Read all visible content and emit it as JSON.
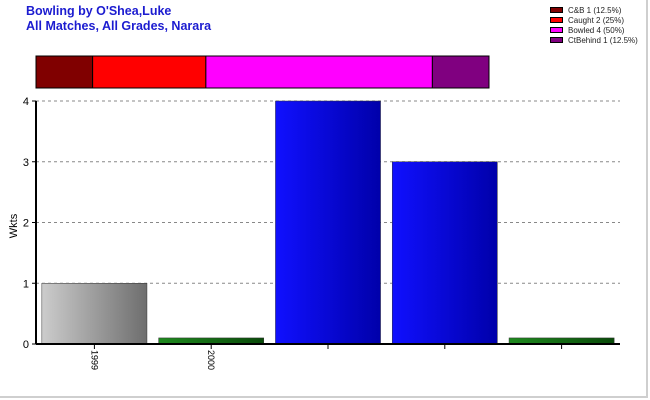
{
  "title_line1": "Bowling by O'Shea,Luke",
  "title_line2": "All Matches, All Grades, Narara",
  "legend": [
    {
      "label": "C&B 1 (12.5%)",
      "color": "#800000"
    },
    {
      "label": "Caught 2 (25%)",
      "color": "#ff0000"
    },
    {
      "label": "Bowled 4 (50%)",
      "color": "#ff00ff"
    },
    {
      "label": "CtBehind 1 (12.5%)",
      "color": "#800080"
    }
  ],
  "chart_data": [
    {
      "type": "bar",
      "title": "",
      "ylabel": "Wkts",
      "xlabel": "",
      "ylim": [
        0,
        4
      ],
      "yticks": [
        "0",
        "1",
        "2",
        "3",
        "4"
      ],
      "grid": true,
      "categories": [
        "1999",
        "2000",
        "",
        "",
        ""
      ],
      "values": [
        1,
        0.1,
        4,
        3,
        0.1
      ],
      "bar_colors": [
        "#999999",
        "#1a7a1a",
        "#0000ee",
        "#0000ee",
        "#1a7a1a"
      ]
    },
    {
      "type": "bar",
      "stacked": true,
      "orientation": "horizontal",
      "categories": [
        "C&B",
        "Caught",
        "Bowled",
        "CtBehind"
      ],
      "values": [
        1,
        2,
        4,
        1
      ],
      "colors": [
        "#800000",
        "#ff0000",
        "#ff00ff",
        "#800080"
      ]
    }
  ]
}
